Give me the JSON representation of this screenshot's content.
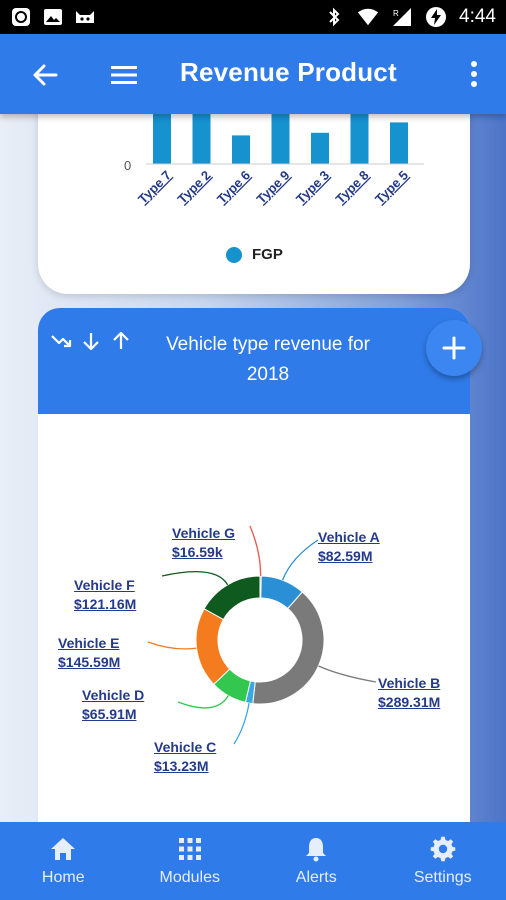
{
  "status_bar": {
    "time": "4:44",
    "icons": [
      "app-icon",
      "image-icon",
      "cat-icon",
      "bluetooth-icon",
      "wifi-icon",
      "signal-icon",
      "battery-charging-icon"
    ]
  },
  "app_bar": {
    "title": "Revenue Product",
    "icons": [
      "back-arrow-icon",
      "hamburger-menu-icon",
      "more-vert-icon"
    ]
  },
  "top_chart": {
    "chart_data": {
      "type": "bar",
      "categories": [
        "Type 7",
        "Type 2",
        "Type 6",
        "Type 9",
        "Type 3",
        "Type 8",
        "Type 5"
      ],
      "values": [
        null,
        null,
        22,
        null,
        24,
        42,
        32
      ],
      "ytick_visible": "0",
      "series": [
        {
          "name": "FGP"
        }
      ],
      "color": "#1692cf"
    },
    "legend_label": "FGP",
    "ytick_zero": "0"
  },
  "vehicle_card": {
    "title": "Vehicle type revenue for 2018",
    "sort_icons": [
      "trend-down-icon",
      "arrow-down-icon",
      "arrow-up-icon"
    ],
    "fab_icon": "plus-icon",
    "chart_data": {
      "type": "pie",
      "title": "Vehicle type revenue for 2018",
      "donut": true,
      "slices": [
        {
          "label": "Vehicle A",
          "value_text": "$82.59M",
          "value": 82.59,
          "color": "#2b8fd6"
        },
        {
          "label": "Vehicle B",
          "value_text": "$289.31M",
          "value": 289.31,
          "color": "#7a7a7a"
        },
        {
          "label": "Vehicle C",
          "value_text": "$13.23M",
          "value": 13.23,
          "color": "#3aa7e0"
        },
        {
          "label": "Vehicle D",
          "value_text": "$65.91M",
          "value": 65.91,
          "color": "#33c74f"
        },
        {
          "label": "Vehicle E",
          "value_text": "$145.59M",
          "value": 145.59,
          "color": "#f57c1e"
        },
        {
          "label": "Vehicle F",
          "value_text": "$121.16M",
          "value": 121.16,
          "color": "#0f5a1e"
        },
        {
          "label": "Vehicle G",
          "value_text": "$16.59k",
          "value": 0.01659,
          "color": "#e55a4e"
        }
      ]
    }
  },
  "bottom_nav": {
    "items": [
      {
        "label": "Home",
        "icon": "home-icon"
      },
      {
        "label": "Modules",
        "icon": "grid-icon"
      },
      {
        "label": "Alerts",
        "icon": "bell-icon"
      },
      {
        "label": "Settings",
        "icon": "gear-icon"
      }
    ]
  }
}
